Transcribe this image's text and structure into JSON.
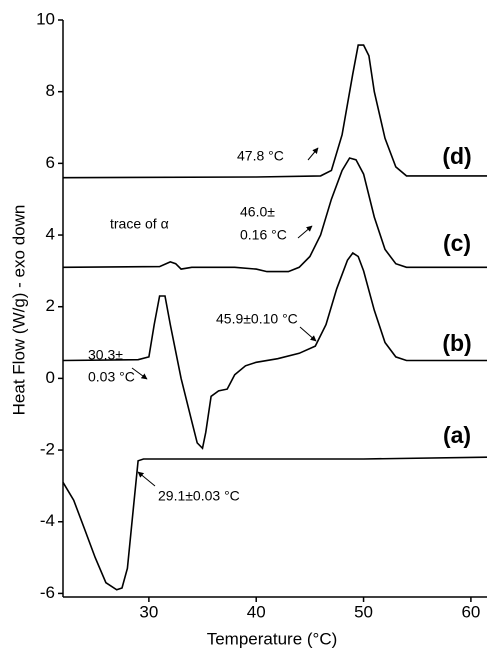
{
  "chart_data": {
    "type": "line",
    "x_label": "Temperature (°C)",
    "y_label": "Heat Flow (W/g) - exo down",
    "xlim": [
      22,
      61.5
    ],
    "xticks": [
      30,
      40,
      50,
      60
    ],
    "ylim": [
      -6.1,
      10
    ],
    "yticks": [
      -6,
      -4,
      -2,
      0,
      2,
      4,
      6,
      8,
      10
    ],
    "grid": false,
    "series": [
      {
        "name": "(a)",
        "color": "#000000",
        "x": [
          22,
          23,
          24,
          25,
          26,
          27,
          27.5,
          28,
          28.6,
          29,
          29.5,
          30,
          40,
          50,
          61.5
        ],
        "values": [
          -2.9,
          -3.4,
          -4.2,
          -5.0,
          -5.7,
          -5.9,
          -5.85,
          -5.3,
          -3.5,
          -2.3,
          -2.25,
          -2.25,
          -2.25,
          -2.25,
          -2.2
        ]
      },
      {
        "name": "(b)",
        "color": "#000000",
        "x": [
          22,
          29,
          30,
          30.5,
          31,
          31.5,
          32,
          33,
          34,
          34.5,
          35,
          35.3,
          35.8,
          36.5,
          37.3,
          38,
          39,
          40,
          42,
          44,
          45.5,
          46.5,
          47.5,
          48.5,
          49,
          49.5,
          50,
          51,
          52,
          53,
          54,
          61.5
        ],
        "values": [
          0.5,
          0.52,
          0.6,
          1.5,
          2.3,
          2.3,
          1.5,
          0,
          -1.2,
          -1.8,
          -1.95,
          -1.5,
          -0.5,
          -0.35,
          -0.3,
          0.1,
          0.35,
          0.45,
          0.55,
          0.7,
          0.9,
          1.5,
          2.5,
          3.3,
          3.5,
          3.4,
          3.0,
          1.9,
          1.0,
          0.6,
          0.5,
          0.5
        ]
      },
      {
        "name": "(c)",
        "color": "#000000",
        "x": [
          22,
          31,
          32,
          32.5,
          33,
          34,
          38,
          40,
          41,
          43,
          44,
          45,
          46,
          47,
          48,
          48.7,
          49.3,
          50,
          51,
          52,
          53,
          54,
          61.5
        ],
        "values": [
          3.1,
          3.12,
          3.25,
          3.2,
          3.05,
          3.1,
          3.1,
          3.05,
          2.98,
          2.98,
          3.1,
          3.4,
          4.0,
          5.0,
          5.8,
          6.15,
          6.1,
          5.7,
          4.5,
          3.6,
          3.2,
          3.1,
          3.1
        ]
      },
      {
        "name": "(d)",
        "color": "#000000",
        "x": [
          22,
          40,
          46,
          47,
          48,
          49,
          49.5,
          50,
          50.5,
          51,
          52,
          53,
          54,
          61.5
        ],
        "values": [
          5.6,
          5.62,
          5.65,
          5.8,
          6.8,
          8.5,
          9.3,
          9.3,
          9.0,
          8.0,
          6.7,
          5.9,
          5.65,
          5.65
        ]
      }
    ],
    "annotations": [
      "29.1±0.03 °C",
      "30.3±",
      "0.03 °C",
      "45.9±0.10 °C",
      "46.0±",
      "0.16 °C",
      "47.8 °C",
      "trace of α"
    ]
  }
}
